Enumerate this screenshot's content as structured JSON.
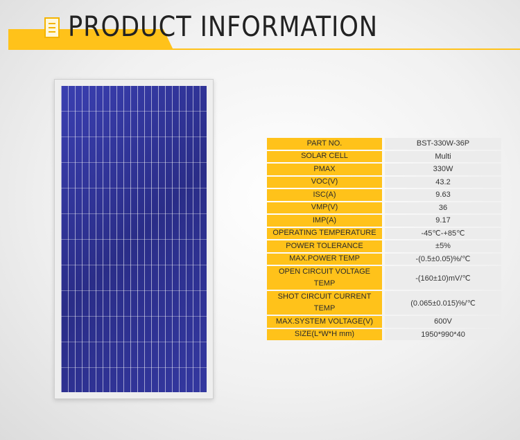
{
  "header": {
    "title": "PRODUCT INFORMATION",
    "accent": "#ffc21a"
  },
  "specs": [
    {
      "label": "PART NO.",
      "value": "BST-330W-36P"
    },
    {
      "label": "SOLAR CELL",
      "value": "Multi"
    },
    {
      "label": "PMAX",
      "value": "330W"
    },
    {
      "label": "VOC(V)",
      "value": "43.2"
    },
    {
      "label": "ISC(A)",
      "value": "9.63"
    },
    {
      "label": "VMP(V)",
      "value": "36"
    },
    {
      "label": "IMP(A)",
      "value": "9.17"
    },
    {
      "label": "OPERATING TEMPERATURE",
      "value": "-45℃-+85℃"
    },
    {
      "label": "POWER TOLERANCE",
      "value": "±5%"
    },
    {
      "label": "MAX.POWER TEMP",
      "value": "-(0.5±0.05)%/℃"
    },
    {
      "label": "OPEN CIRCUIT VOLTAGE TEMP",
      "value": "-(160±10)mV/℃"
    },
    {
      "label": "SHOT CIRCUIT CURRENT TEMP",
      "value": "(0.065±0.015)%/℃"
    },
    {
      "label": "MAX.SYSTEM VOLTAGE(V)",
      "value": "600V"
    },
    {
      "label": "SIZE(L*W*H mm)",
      "value": "1950*990*40"
    }
  ]
}
